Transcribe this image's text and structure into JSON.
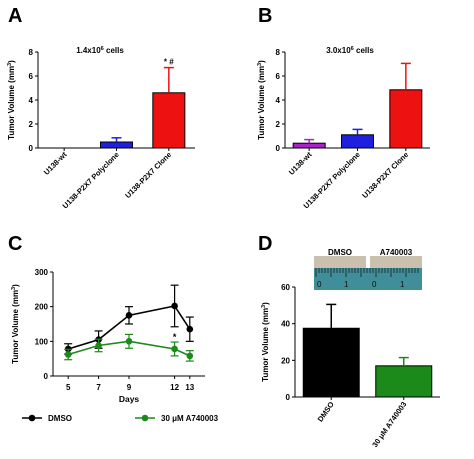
{
  "chart_data": [
    {
      "panel_label": "A",
      "type": "bar",
      "title": "1.4x10",
      "title_superscript": "6",
      "title_suffix": " cells",
      "ylabel": "Tumor Volume (mm",
      "ylabel_superscript": "3",
      "ylabel_suffix": ")",
      "ylim": [
        0,
        8
      ],
      "yticks": [
        "0",
        "2",
        "4",
        "6",
        "8"
      ],
      "categories": [
        "U138-wt",
        "U138-P2X7 Polyclone",
        "U138-P2X7 Clone"
      ],
      "values": [
        0,
        0.5,
        4.6
      ],
      "errors": [
        0,
        0.35,
        2.1
      ],
      "colors": [
        "#aa22cc",
        "#1f1fe0",
        "#ee1111"
      ],
      "annotations": [
        {
          "category_index": 2,
          "text": "*  #"
        }
      ]
    },
    {
      "panel_label": "B",
      "type": "bar",
      "title": "3.0x10",
      "title_superscript": "6",
      "title_suffix": " cells",
      "ylabel": "Tumor Volume (mm",
      "ylabel_superscript": "3",
      "ylabel_suffix": ")",
      "ylim": [
        0,
        8
      ],
      "yticks": [
        "0",
        "2",
        "4",
        "6",
        "8"
      ],
      "categories": [
        "U138-wt",
        "U138-P2X7 Polyclone",
        "U138-P2X7 Clone"
      ],
      "values": [
        0.4,
        1.1,
        4.85
      ],
      "errors": [
        0.3,
        0.45,
        2.2
      ],
      "colors": [
        "#aa22cc",
        "#1f1fe0",
        "#ee1111"
      ],
      "annotations": []
    },
    {
      "panel_label": "C",
      "type": "line",
      "xlabel": "Days",
      "ylabel": "Tumor Volume (mm",
      "ylabel_superscript": "3",
      "ylabel_suffix": ")",
      "ylim": [
        0,
        300
      ],
      "yticks": [
        "0",
        "100",
        "200",
        "300"
      ],
      "x": [
        "5",
        "7",
        "9",
        "12",
        "13"
      ],
      "series": [
        {
          "name": "DMSO",
          "color": "#000000",
          "values": [
            78,
            105,
            175,
            202,
            135
          ],
          "errors": [
            15,
            25,
            25,
            60,
            35
          ]
        },
        {
          "name": "30 μM A740003",
          "color": "#1b8a1b",
          "values": [
            62,
            88,
            100,
            78,
            58
          ],
          "errors": [
            15,
            18,
            20,
            20,
            15
          ]
        }
      ],
      "annotations": [
        {
          "x_index": 3,
          "text": "*"
        }
      ],
      "legend_position": "bottom"
    },
    {
      "panel_label": "D",
      "type": "bar",
      "ylabel": "Tumor Volume (mm",
      "ylabel_superscript": "3",
      "ylabel_suffix": ")",
      "ylim": [
        0,
        60
      ],
      "yticks": [
        "0",
        "20",
        "40",
        "60"
      ],
      "categories": [
        "DMSO",
        "30 μM A740003"
      ],
      "values": [
        37.5,
        17
      ],
      "errors": [
        13,
        4.5
      ],
      "colors": [
        "#000000",
        "#1b8a1b"
      ],
      "photo_labels": [
        "DMSO",
        "A740003"
      ],
      "ruler_labels": [
        "0",
        "1"
      ]
    }
  ]
}
